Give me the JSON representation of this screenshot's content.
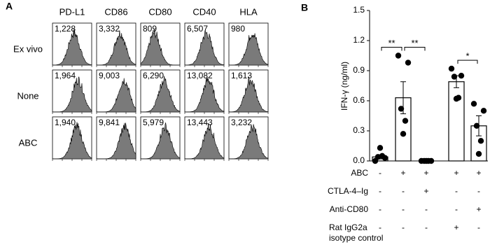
{
  "panel_a": {
    "label": "A",
    "columns": [
      "PD-L1",
      "CD86",
      "CD80",
      "CD40",
      "HLA"
    ],
    "rows": [
      {
        "name": "Ex vivo",
        "values": [
          "1,228",
          "3,332",
          "809",
          "6,507",
          "980"
        ]
      },
      {
        "name": "None",
        "values": [
          "1,964",
          "9,003",
          "6,290",
          "13,082",
          "1,613"
        ]
      },
      {
        "name": "ABC",
        "values": [
          "1,940",
          "9,841",
          "5,979",
          "13,443",
          "3,232"
        ]
      }
    ]
  },
  "chart_data": {
    "type": "bar",
    "panel_label": "B",
    "ylabel": "IFN-γ (ng/ml)",
    "ylim": [
      0,
      1.5
    ],
    "yticks": [
      {
        "value": 0,
        "label": "0.0"
      },
      0.3,
      0.6,
      0.9,
      1.2,
      1.5
    ],
    "values": [
      0.04,
      0.63,
      0.0,
      0.79,
      0.35
    ],
    "errors": [
      0.02,
      0.16,
      0.0,
      0.06,
      0.1
    ],
    "points": [
      [
        0.0,
        0.03,
        0.04,
        0.05,
        0.13
      ],
      [
        1.05,
        0.98,
        0.52,
        0.4,
        0.27
      ],
      [
        0.0,
        0.0,
        0.0,
        0.0,
        0.0
      ],
      [
        0.92,
        0.85,
        0.84,
        0.63,
        0.62
      ],
      [
        0.57,
        0.5,
        0.35,
        0.2,
        0.07
      ]
    ],
    "annotations": [
      {
        "from": 0,
        "to": 1,
        "label": "**"
      },
      {
        "from": 1,
        "to": 2,
        "label": "**"
      },
      {
        "from": 3,
        "to": 4,
        "label": "*"
      }
    ],
    "conditions": [
      {
        "label": [
          "ABC"
        ],
        "signs": [
          "-",
          "+",
          "+",
          "+",
          "+"
        ]
      },
      {
        "label": [
          "CTLA-4–Ig"
        ],
        "signs": [
          "-",
          "-",
          "+",
          "-",
          "-"
        ]
      },
      {
        "label": [
          "Anti-CD80"
        ],
        "signs": [
          "-",
          "-",
          "-",
          "-",
          "+"
        ]
      },
      {
        "label": [
          "Rat IgG2a",
          "isotype control"
        ],
        "signs": [
          "-",
          "-",
          "-",
          "+",
          "-"
        ]
      }
    ]
  }
}
